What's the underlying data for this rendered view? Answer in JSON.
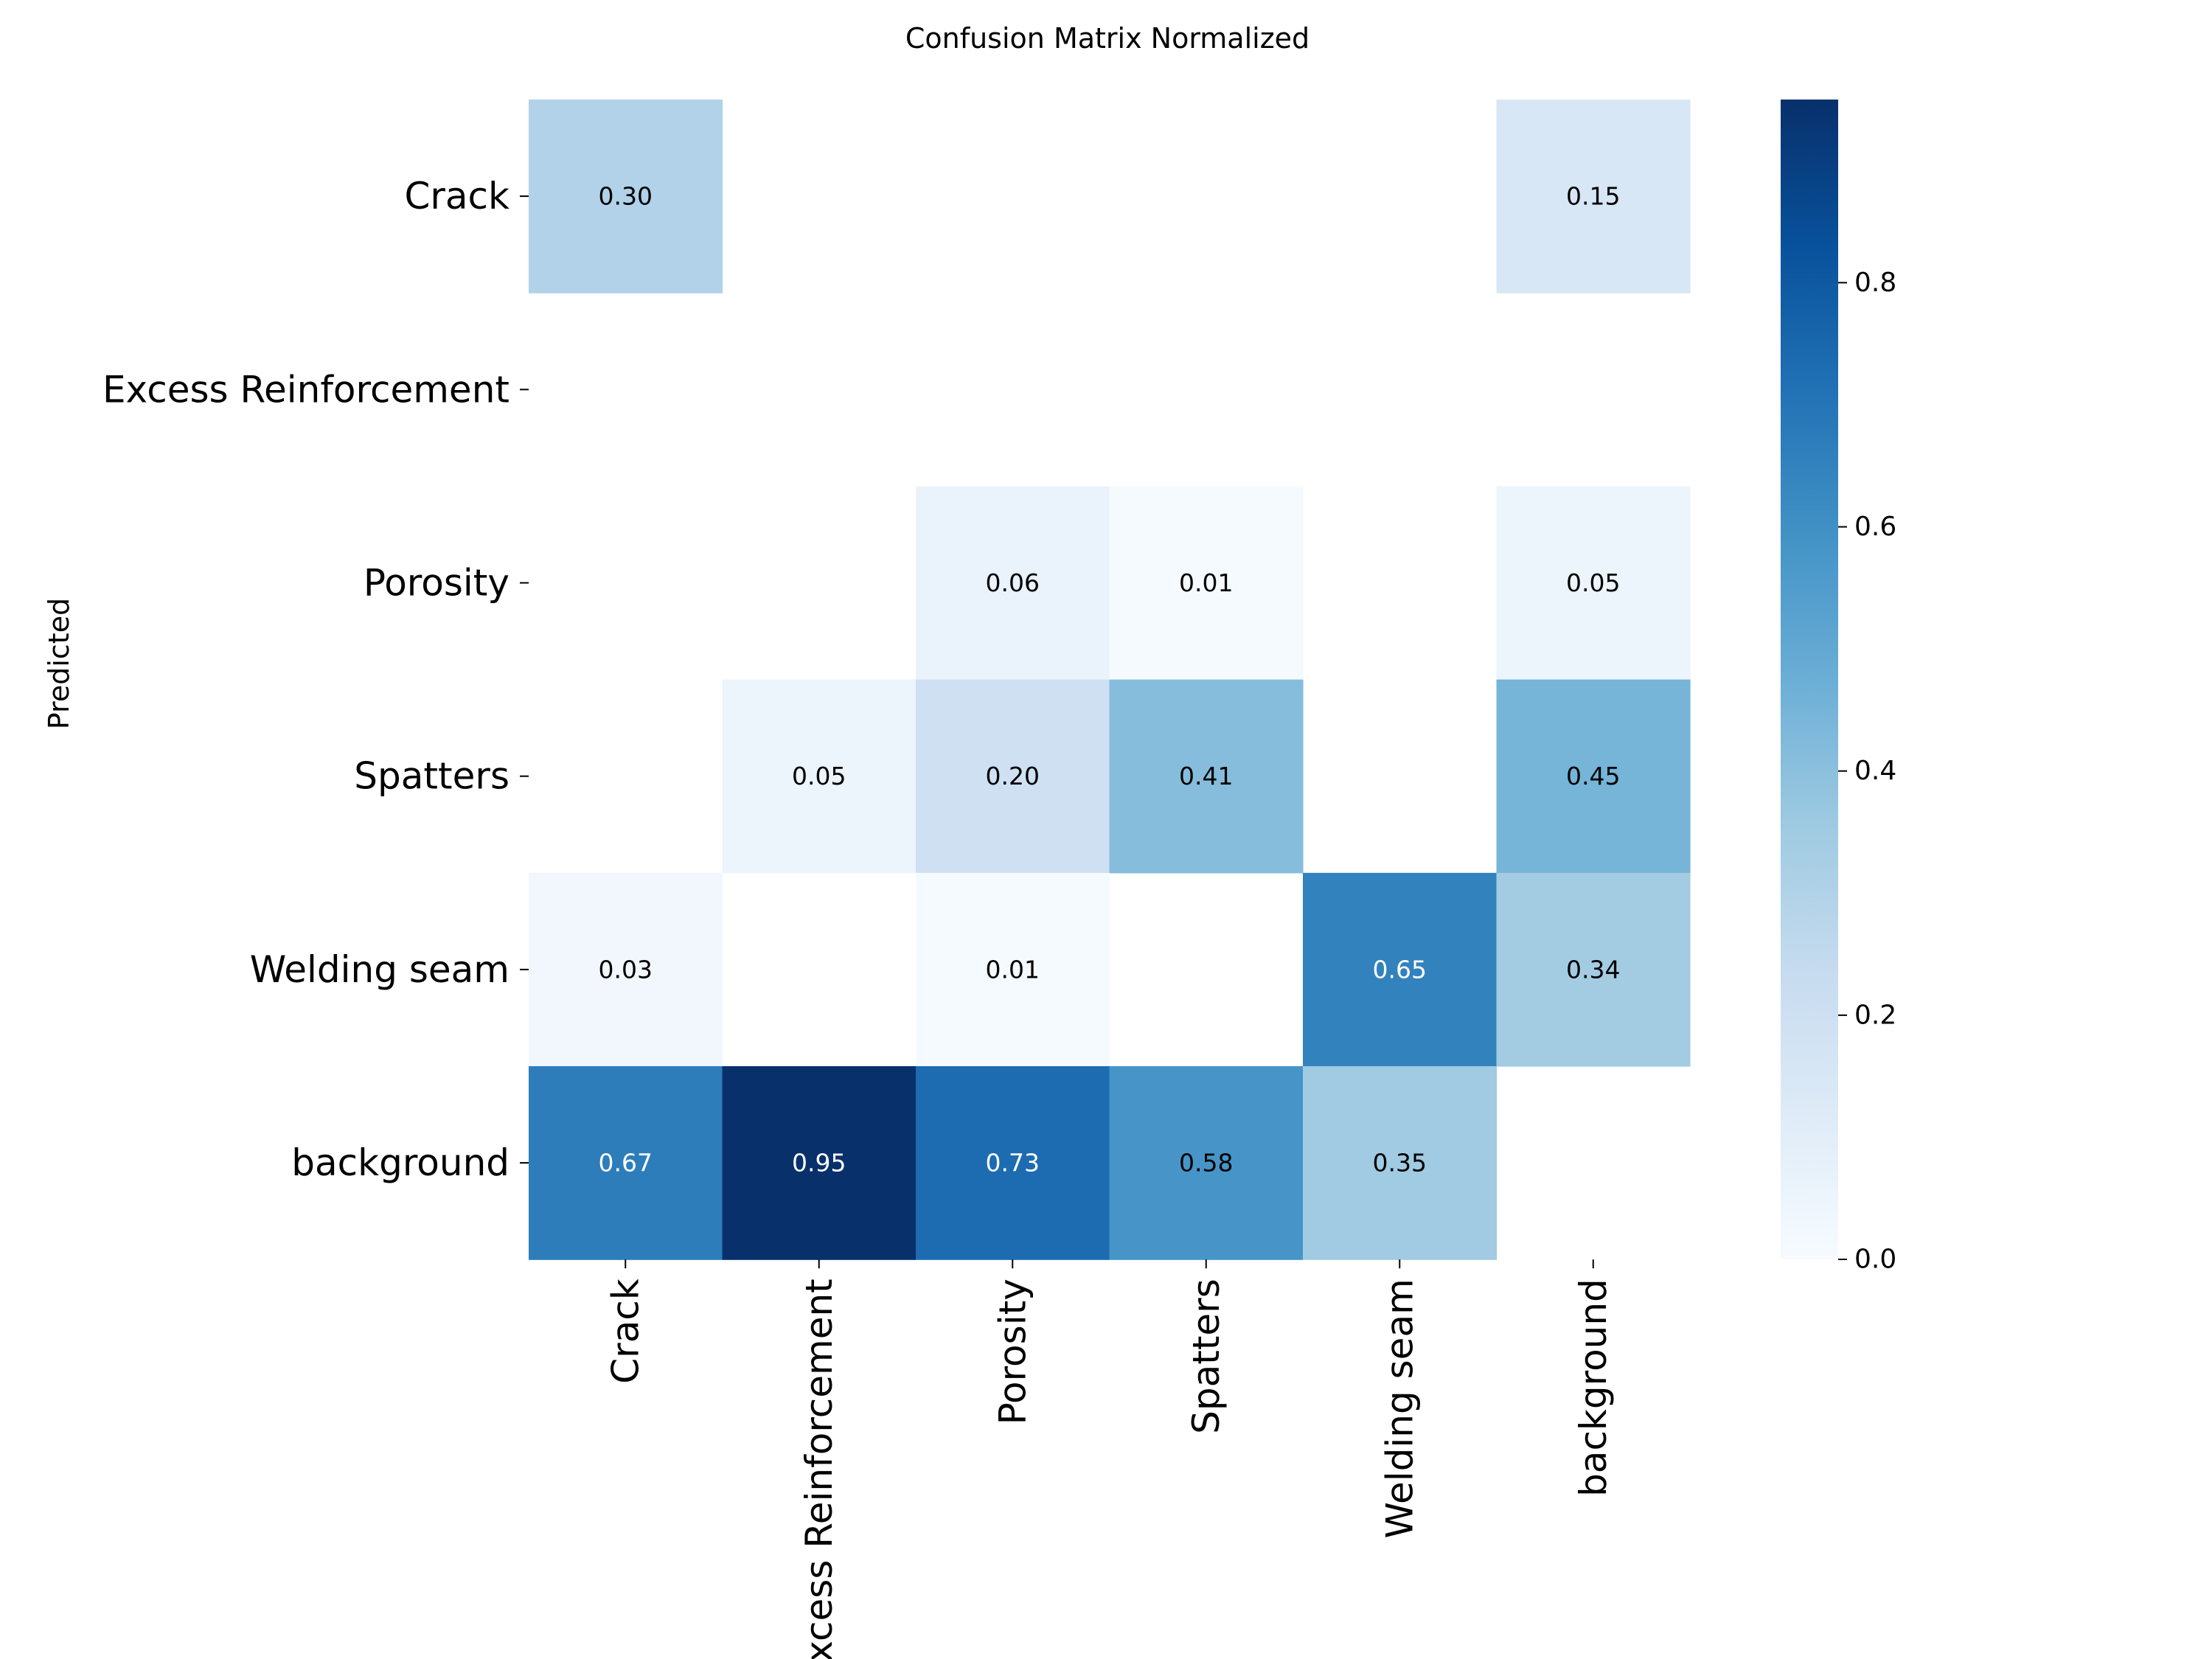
{
  "chart_data": {
    "type": "heatmap",
    "title": "Confusion Matrix Normalized",
    "ylabel": "Predicted",
    "xlabel": "",
    "row_labels": [
      "Crack",
      "Excess Reinforcement",
      "Porosity",
      "Spatters",
      "Welding seam",
      "background"
    ],
    "col_labels": [
      "Crack",
      "Excess Reinforcement",
      "Porosity",
      "Spatters",
      "Welding seam",
      "background"
    ],
    "values": [
      [
        0.3,
        null,
        null,
        null,
        null,
        0.15
      ],
      [
        null,
        null,
        null,
        null,
        null,
        null
      ],
      [
        null,
        null,
        0.06,
        0.01,
        null,
        0.05
      ],
      [
        null,
        0.05,
        0.2,
        0.41,
        null,
        0.45
      ],
      [
        0.03,
        null,
        0.01,
        null,
        0.65,
        0.34
      ],
      [
        0.67,
        0.95,
        0.73,
        0.58,
        0.35,
        null
      ]
    ],
    "value_labels": [
      [
        "0.30",
        "",
        "",
        "",
        "",
        "0.15"
      ],
      [
        "",
        "",
        "",
        "",
        "",
        ""
      ],
      [
        "",
        "",
        "0.06",
        "0.01",
        "",
        "0.05"
      ],
      [
        "",
        "0.05",
        "0.20",
        "0.41",
        "",
        "0.45"
      ],
      [
        "0.03",
        "",
        "0.01",
        "",
        "0.65",
        "0.34"
      ],
      [
        "0.67",
        "0.95",
        "0.73",
        "0.58",
        "0.35",
        ""
      ]
    ],
    "colormap": "Blues",
    "colorbar": {
      "range": [
        0.0,
        0.95
      ],
      "ticks": [
        0.0,
        0.2,
        0.4,
        0.6,
        0.8
      ],
      "tick_labels": [
        "0.0",
        "0.2",
        "0.4",
        "0.6",
        "0.8"
      ]
    },
    "grid": false
  }
}
